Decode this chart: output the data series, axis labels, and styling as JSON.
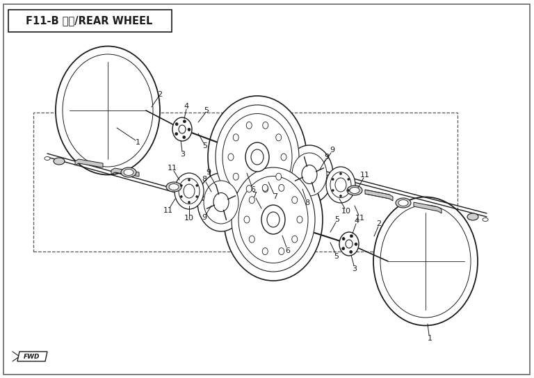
{
  "title": "F11-B 后轮/REAR WHEEL",
  "lc": "#1a1a1a",
  "figsize": [
    7.68,
    5.44
  ],
  "dpi": 100,
  "title_fontsize": 10.5,
  "label_fontsize": 8
}
